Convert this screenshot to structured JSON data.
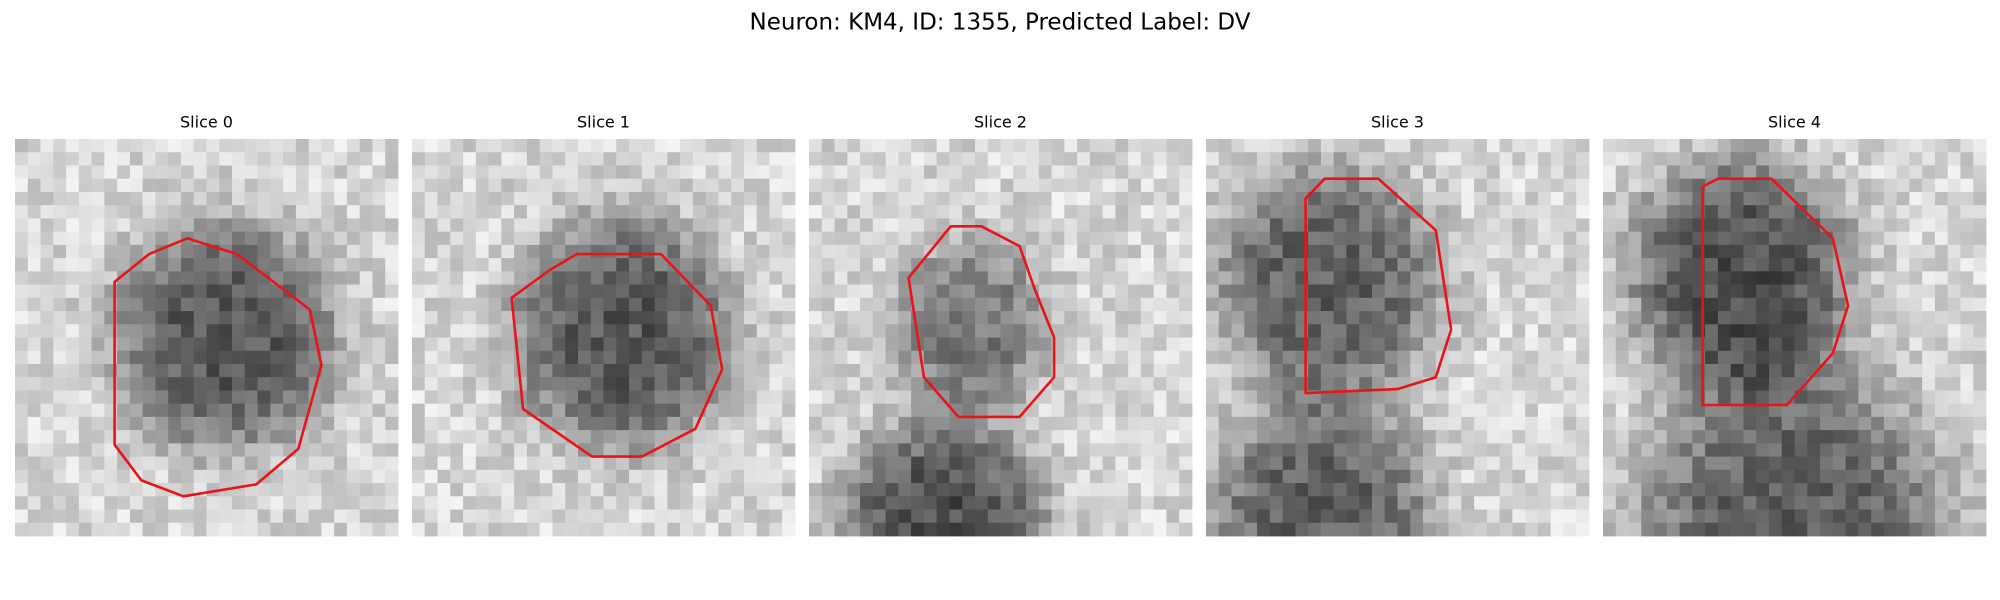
{
  "title": "Neuron: KM4, ID: 1355, Predicted Label: DV",
  "panels": [
    {
      "title": "Slice 0"
    },
    {
      "title": "Slice 1"
    },
    {
      "title": "Slice 2"
    },
    {
      "title": "Slice 3"
    },
    {
      "title": "Slice 4"
    }
  ]
}
